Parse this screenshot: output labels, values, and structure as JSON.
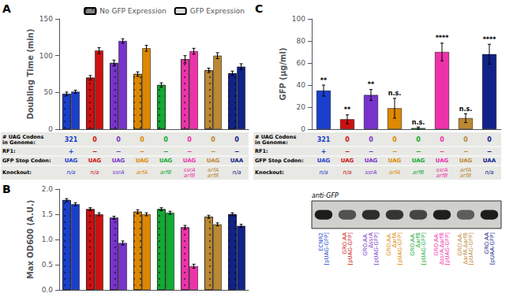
{
  "chart_data": [
    {
      "type": "bar",
      "title": "A",
      "ylabel": "Doubling Time (min)",
      "categories": [
        null,
        null,
        null,
        null,
        null,
        null,
        null,
        null
      ],
      "colors": [
        "#1a3fcc",
        "#cc1111",
        "#7733cc",
        "#dd8800",
        "#11aa33",
        "#ee33aa",
        "#bb8833",
        "#112288"
      ],
      "series": [
        {
          "name": "No GFP Expression",
          "color": "#888888",
          "values": [
            48,
            70,
            90,
            75,
            60,
            95,
            80,
            76
          ],
          "errors": [
            2.5,
            3,
            4,
            3,
            3,
            5,
            3,
            3
          ]
        },
        {
          "name": "GFP Expression",
          "color": "#dddddd",
          "values": [
            51,
            107,
            120,
            110,
            null,
            106,
            100,
            85
          ],
          "errors": [
            2,
            4,
            3,
            4,
            null,
            4,
            4,
            4
          ]
        }
      ],
      "ylim": [
        0,
        150
      ],
      "yticks": [
        0,
        50,
        100,
        150
      ],
      "grid": false,
      "legend": "upper right",
      "tick_labels": "y"
    },
    {
      "type": "table",
      "row_labels": [
        "# UAG Codons\nin Genome:",
        "RF1:",
        "GFP Stop Codon:",
        "Knockout:"
      ],
      "rows": [
        [
          321,
          0,
          0,
          0,
          0,
          0,
          0,
          0
        ],
        [
          "+",
          "−",
          "−",
          "−",
          "−",
          "−",
          "−",
          "−"
        ],
        [
          "UAG",
          "UAG",
          "UAG",
          "UAG",
          "UAG",
          "UAG",
          "UAG",
          "UAA"
        ],
        [
          "n/a",
          "n/a",
          "ssrA",
          "arfA",
          "arfB",
          "ssrA\narfB",
          "arfA\narfB",
          "n/a"
        ]
      ],
      "colors": [
        "#1a3fcc",
        "#cc1111",
        "#7733cc",
        "#dd8800",
        "#11aa33",
        "#ee33aa",
        "#bb8833",
        "#112288"
      ]
    },
    {
      "type": "bar",
      "title": "B",
      "ylabel": "Max OD600 (A.U.)",
      "categories": [
        null,
        null,
        null,
        null,
        null,
        null,
        null,
        null
      ],
      "colors": [
        "#1a3fcc",
        "#cc1111",
        "#7733cc",
        "#dd8800",
        "#11aa33",
        "#ee33aa",
        "#bb8833",
        "#112288"
      ],
      "series": [
        {
          "name": "No GFP Expression",
          "color": "#888888",
          "values": [
            1.78,
            1.6,
            1.43,
            1.55,
            1.6,
            1.24,
            1.45,
            1.5
          ],
          "errors": [
            0.03,
            0.03,
            0.03,
            0.04,
            0.03,
            0.04,
            0.03,
            0.03
          ]
        },
        {
          "name": "GFP Expression",
          "color": "#dddddd",
          "values": [
            1.7,
            1.5,
            0.93,
            1.5,
            1.53,
            0.47,
            1.3,
            1.27
          ],
          "errors": [
            0.03,
            0.03,
            0.04,
            0.03,
            0.03,
            0.04,
            0.03,
            0.03
          ]
        }
      ],
      "ylim": [
        0,
        2.0
      ],
      "yticks": [
        {
          "value": 0,
          "label": "0.0"
        },
        0.5,
        {
          "value": 1.0,
          "label": "1.0"
        },
        1.5,
        {
          "value": 2.0,
          "label": "2.0"
        }
      ],
      "grid": false,
      "tick_labels": "y"
    },
    {
      "type": "bar",
      "title": "C",
      "ylabel": "GFP (µg/ml)",
      "categories": [
        null,
        null,
        null,
        null,
        null,
        null,
        null,
        null
      ],
      "colors": [
        "#1a3fcc",
        "#cc1111",
        "#7733cc",
        "#dd8800",
        "#11aa33",
        "#ee33aa",
        "#bb8833",
        "#112288"
      ],
      "values": [
        35,
        9,
        31,
        19,
        1,
        70,
        10,
        68
      ],
      "errors": [
        5,
        4,
        5,
        9,
        1,
        8,
        4,
        9
      ],
      "annotations": [
        "**",
        "**",
        "**",
        "n.s.",
        "n.s.",
        "****",
        "n.s.",
        "****"
      ],
      "ylim": [
        0,
        100
      ],
      "yticks": [
        0,
        20,
        40,
        60,
        80,
        100
      ],
      "grid": false,
      "tick_labels": "y"
    },
    {
      "type": "western_blot",
      "title": "anti-GFP",
      "categories": [
        "ECNR2\n[pUAG-GFP]",
        "GRO.AA\n[pUAG-GFP]",
        "GRO.AA.\nΔssrA\n[pUAG-GFP]",
        "GRO.AA.\nΔarfA\n[pUAG-GFP]",
        "GRO.AA.\nΔarfB\n[pUAG-GFP]",
        "GRO.AA.\nΔssrA.ΔarfB\n[pUAG-GFP]",
        "GRO.AA.\nΔarfA.ΔarfB\n[pUAG-GFP]",
        "GRO.AA\n[pUAA-GFP]"
      ],
      "band_darkness": [
        0.05,
        0.28,
        0.12,
        0.15,
        0.22,
        0.06,
        0.32,
        0.05
      ],
      "colors": [
        "#1a3fcc",
        "#cc1111",
        "#7733cc",
        "#dd8800",
        "#11aa33",
        "#ee33aa",
        "#bb8833",
        "#112288"
      ]
    }
  ]
}
